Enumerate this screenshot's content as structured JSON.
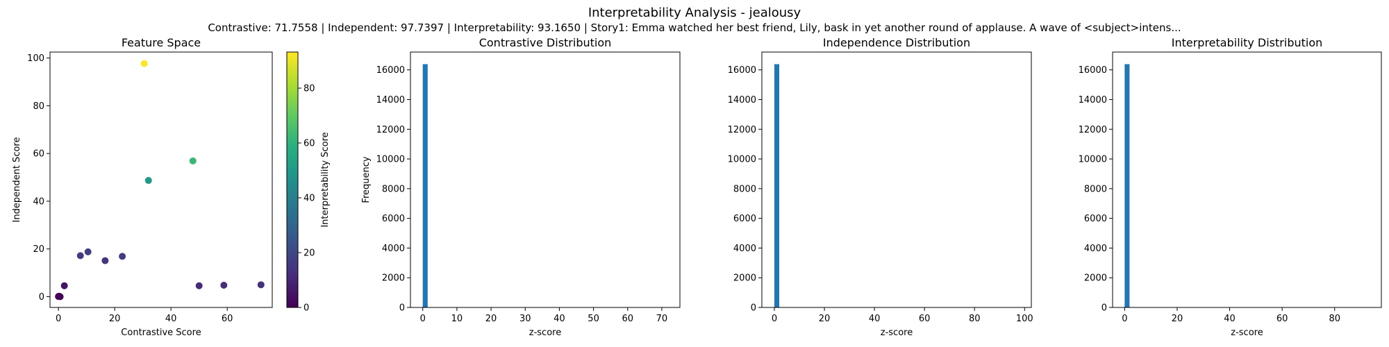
{
  "figure": {
    "title": "Interpretability Analysis - jealousy",
    "subtitle": "Contrastive: 71.7558 | Independent: 97.7397 | Interpretability: 93.1650 | Story1: Emma watched her best friend, Lily, bask in yet another round of applause. A wave of <subject>intens..."
  },
  "chart_data": [
    {
      "type": "scatter",
      "title": "Feature Space",
      "xlabel": "Contrastive Score",
      "ylabel": "Independent Score",
      "xlim": [
        -3,
        76
      ],
      "ylim": [
        -4.5,
        102.5
      ],
      "xticks": [
        0,
        20,
        40,
        60
      ],
      "yticks": [
        0,
        20,
        40,
        60,
        80,
        100
      ],
      "colorbar": {
        "label": "Interpretability Score",
        "range": [
          0,
          93.165
        ],
        "ticks": [
          0,
          20,
          40,
          60,
          80
        ],
        "colormap": "viridis"
      },
      "points": [
        {
          "x": 30.5,
          "y": 97.7,
          "c": 93.2
        },
        {
          "x": 47.8,
          "y": 56.9,
          "c": 62.0
        },
        {
          "x": 32.0,
          "y": 48.7,
          "c": 50.0
        },
        {
          "x": 10.5,
          "y": 18.8,
          "c": 17.0
        },
        {
          "x": 7.8,
          "y": 17.2,
          "c": 16.0
        },
        {
          "x": 22.7,
          "y": 16.9,
          "c": 16.5
        },
        {
          "x": 16.6,
          "y": 15.1,
          "c": 14.0
        },
        {
          "x": 72.0,
          "y": 5.0,
          "c": 13.0
        },
        {
          "x": 58.8,
          "y": 4.8,
          "c": 12.0
        },
        {
          "x": 50.0,
          "y": 4.6,
          "c": 11.0
        },
        {
          "x": 2.1,
          "y": 4.6,
          "c": 5.0
        },
        {
          "x": 0.0,
          "y": 0.1,
          "c": 0.0
        },
        {
          "x": 0.3,
          "y": 0.2,
          "c": 0.5
        },
        {
          "x": 0.6,
          "y": 0.0,
          "c": 0.2
        }
      ]
    },
    {
      "type": "bar",
      "title": "Contrastive Distribution",
      "xlabel": "z-score",
      "ylabel": "Frequency",
      "xlim": [
        -3.6,
        75.3
      ],
      "ylim": [
        0,
        17200
      ],
      "xticks": [
        0,
        10,
        20,
        30,
        40,
        50,
        60,
        70
      ],
      "yticks": [
        0,
        2000,
        4000,
        6000,
        8000,
        10000,
        12000,
        14000,
        16000
      ],
      "bars": [
        {
          "x0": 0,
          "x1": 1.44,
          "value": 16384
        }
      ]
    },
    {
      "type": "bar",
      "title": "Independence Distribution",
      "xlabel": "z-score",
      "ylabel": "",
      "xlim": [
        -5,
        102.7
      ],
      "ylim": [
        0,
        17200
      ],
      "xticks": [
        0,
        20,
        40,
        60,
        80,
        100
      ],
      "yticks": [
        0,
        2000,
        4000,
        6000,
        8000,
        10000,
        12000,
        14000,
        16000
      ],
      "bars": [
        {
          "x0": 0,
          "x1": 1.95,
          "value": 16384
        }
      ]
    },
    {
      "type": "bar",
      "title": "Interpretability Distribution",
      "xlabel": "z-score",
      "ylabel": "",
      "xlim": [
        -4.6,
        97.8
      ],
      "ylim": [
        0,
        17200
      ],
      "xticks": [
        0,
        20,
        40,
        60,
        80
      ],
      "yticks": [
        0,
        2000,
        4000,
        6000,
        8000,
        10000,
        12000,
        14000,
        16000
      ],
      "bars": [
        {
          "x0": 0,
          "x1": 1.86,
          "value": 16384
        }
      ]
    }
  ],
  "colors": {
    "bar": "#1f77b4",
    "axis": "#000000"
  }
}
